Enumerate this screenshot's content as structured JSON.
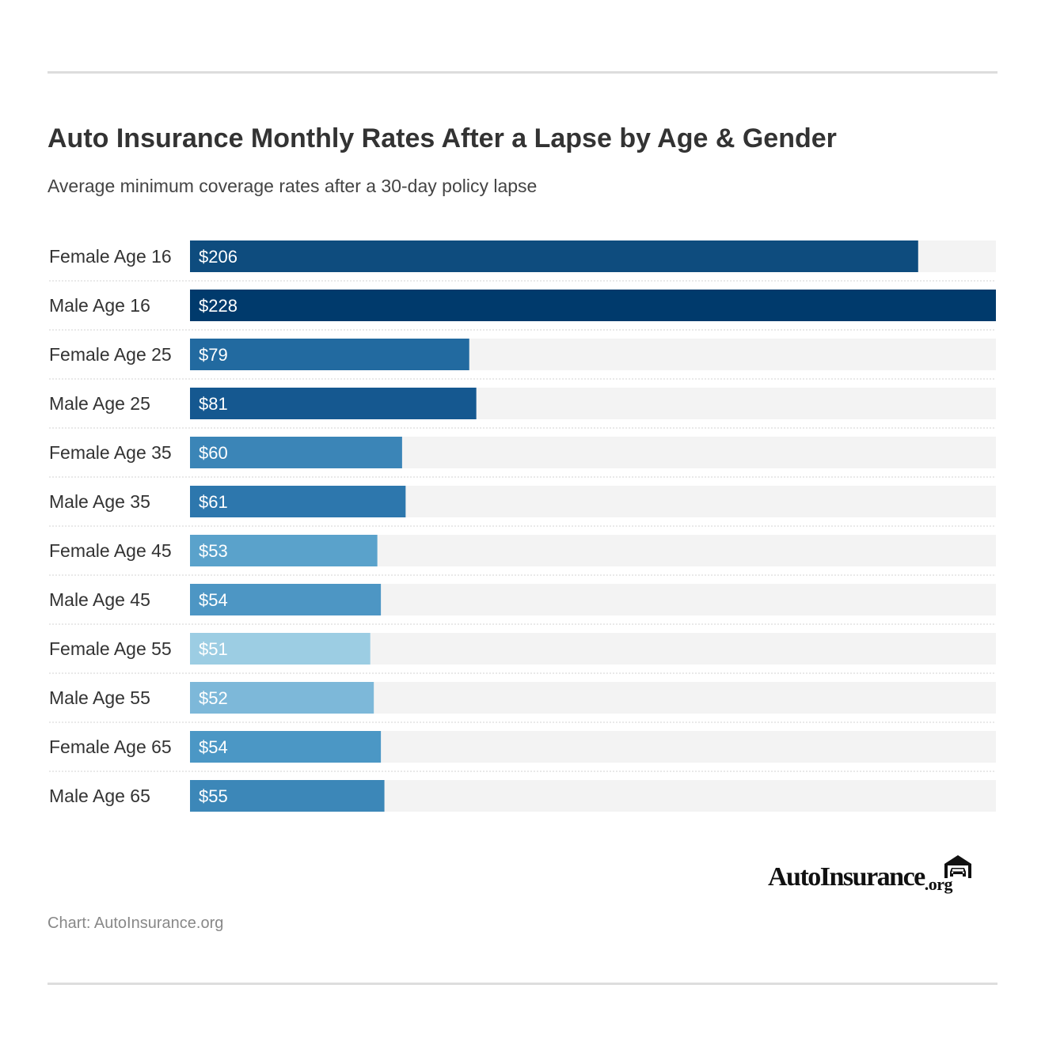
{
  "title": "Auto Insurance Monthly Rates After a Lapse by Age & Gender",
  "subtitle": "Average minimum coverage rates after a 30-day policy lapse",
  "source": "Chart: AutoInsurance.org",
  "logo": {
    "text": "AutoInsurance",
    "tld": ".org",
    "icon": "garage-car-icon"
  },
  "chart_data": {
    "type": "bar",
    "orientation": "horizontal",
    "categories": [
      "Female Age 16",
      "Male Age 16",
      "Female Age 25",
      "Male Age 25",
      "Female Age 35",
      "Male Age 35",
      "Female Age 45",
      "Male Age 45",
      "Female Age 55",
      "Male Age 55",
      "Female Age 65",
      "Male Age 65"
    ],
    "values": [
      206,
      228,
      79,
      81,
      60,
      61,
      53,
      54,
      51,
      52,
      54,
      55
    ],
    "value_labels": [
      "$206",
      "$228",
      "$79",
      "$81",
      "$60",
      "$61",
      "$53",
      "$54",
      "$51",
      "$52",
      "$54",
      "$55"
    ],
    "xlim": [
      0,
      228
    ],
    "grid": false,
    "colors": [
      "#0e4c7e",
      "#003a6c",
      "#226aa0",
      "#155890",
      "#3b85b7",
      "#2d77ad",
      "#5aa2cb",
      "#4d96c4",
      "#9ccde3",
      "#7db8d9",
      "#4b97c5",
      "#3c87b8"
    ],
    "track_color": "#f3f3f3",
    "separator_color": "#d3d3d3"
  }
}
